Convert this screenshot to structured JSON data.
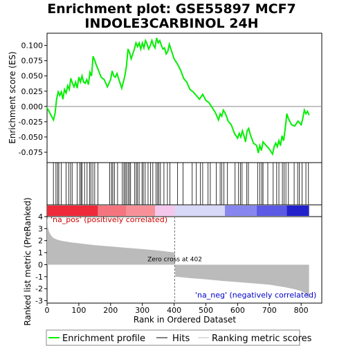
{
  "title_line1": "Enrichment plot: GSE55897 MCF7",
  "title_line2": "INDOLE3CARBINOL 24H",
  "colors": {
    "enrichment_line": "#00ee00",
    "hits": "#000000",
    "ranking_fill": "#bbbbbb",
    "positive_label": "#cc0000",
    "negative_label": "#0000cc",
    "zero_cross_line": "#777777"
  },
  "chart_data": [
    {
      "type": "line",
      "name": "enrichment-score",
      "ylabel": "Enrichment score (ES)",
      "ylim": [
        -0.092,
        0.12
      ],
      "xlim": [
        0,
        865
      ],
      "yticks": [
        "0.100",
        "0.075",
        "0.050",
        "0.025",
        "0.000",
        "-0.025",
        "-0.050",
        "-0.075"
      ],
      "ytick_values": [
        0.1,
        0.075,
        0.05,
        0.025,
        0.0,
        -0.025,
        -0.05,
        -0.075
      ],
      "grid": false,
      "series": [
        {
          "x": [
            0,
            10,
            20,
            25,
            30,
            35,
            40,
            45,
            50,
            55,
            60,
            65,
            70,
            75,
            80,
            85,
            90,
            95,
            100,
            105,
            110,
            115,
            120,
            125,
            130,
            135,
            140,
            145,
            150,
            155,
            160,
            170,
            180,
            190,
            200,
            205,
            210,
            215,
            220,
            225,
            230,
            235,
            240,
            245,
            250,
            255,
            260,
            265,
            270,
            275,
            280,
            285,
            290,
            295,
            300,
            305,
            310,
            315,
            320,
            325,
            330,
            335,
            340,
            345,
            350,
            355,
            360,
            365,
            370,
            375,
            380,
            385,
            390,
            395,
            400,
            410,
            420,
            430,
            440,
            450,
            460,
            470,
            480,
            490,
            500,
            510,
            520,
            530,
            540,
            545,
            550,
            555,
            560,
            565,
            570,
            580,
            590,
            600,
            605,
            610,
            615,
            620,
            625,
            630,
            635,
            640,
            650,
            660,
            665,
            670,
            675,
            680,
            690,
            700,
            710,
            715,
            720,
            725,
            730,
            735,
            740,
            745,
            750,
            755,
            760,
            770,
            780,
            790,
            800,
            805,
            810,
            815,
            820,
            825
          ],
          "y": [
            -0.002,
            -0.012,
            -0.022,
            -0.012,
            0.012,
            0.024,
            0.018,
            0.024,
            0.012,
            0.028,
            0.022,
            0.034,
            0.028,
            0.046,
            0.038,
            0.032,
            0.04,
            0.03,
            0.048,
            0.04,
            0.05,
            0.04,
            0.038,
            0.044,
            0.036,
            0.056,
            0.05,
            0.082,
            0.076,
            0.068,
            0.062,
            0.048,
            0.044,
            0.032,
            0.044,
            0.058,
            0.05,
            0.048,
            0.054,
            0.046,
            0.038,
            0.03,
            0.04,
            0.05,
            0.066,
            0.094,
            0.088,
            0.078,
            0.086,
            0.094,
            0.104,
            0.098,
            0.104,
            0.094,
            0.104,
            0.096,
            0.108,
            0.102,
            0.094,
            0.1,
            0.108,
            0.1,
            0.096,
            0.112,
            0.104,
            0.108,
            0.1,
            0.094,
            0.096,
            0.086,
            0.09,
            0.102,
            0.094,
            0.086,
            0.078,
            0.07,
            0.06,
            0.046,
            0.04,
            0.028,
            0.024,
            0.018,
            0.012,
            0.02,
            0.01,
            0.006,
            -0.002,
            -0.01,
            -0.022,
            -0.012,
            -0.016,
            -0.006,
            -0.01,
            -0.016,
            -0.024,
            -0.03,
            -0.044,
            -0.052,
            -0.044,
            -0.05,
            -0.04,
            -0.048,
            -0.058,
            -0.04,
            -0.036,
            -0.046,
            -0.06,
            -0.064,
            -0.076,
            -0.064,
            -0.072,
            -0.058,
            -0.064,
            -0.07,
            -0.078,
            -0.066,
            -0.06,
            -0.066,
            -0.056,
            -0.064,
            -0.048,
            -0.056,
            -0.036,
            -0.012,
            -0.02,
            -0.03,
            -0.032,
            -0.024,
            -0.03,
            -0.02,
            -0.006,
            -0.012,
            -0.008,
            -0.014
          ]
        }
      ]
    },
    {
      "type": "bar",
      "name": "hits",
      "xlim": [
        0,
        865
      ],
      "hit_positions": [
        20,
        28,
        33,
        37,
        45,
        60,
        68,
        74,
        79,
        95,
        103,
        107,
        110,
        118,
        126,
        134,
        138,
        144,
        150,
        160,
        197,
        203,
        207,
        212,
        222,
        237,
        242,
        246,
        250,
        255,
        259,
        263,
        276,
        281,
        285,
        290,
        299,
        303,
        309,
        318,
        326,
        333,
        343,
        348,
        352,
        357,
        368,
        379,
        387,
        411,
        428,
        457,
        470,
        483,
        490,
        507,
        514,
        533,
        545,
        550,
        557,
        568,
        592,
        603,
        609,
        614,
        629,
        634,
        663,
        670,
        676,
        680,
        695,
        712,
        723,
        730,
        741,
        746,
        752,
        760,
        778,
        789,
        794,
        803,
        815,
        823
      ]
    },
    {
      "type": "heatmap",
      "name": "ranked-list-colorbar",
      "xlim": [
        0,
        865
      ],
      "segments": [
        {
          "from": 0,
          "to": 160,
          "color": "#ee2a3a"
        },
        {
          "from": 160,
          "to": 250,
          "color": "#f5757f"
        },
        {
          "from": 250,
          "to": 340,
          "color": "#f89098"
        },
        {
          "from": 340,
          "to": 402,
          "color": "#f4c8ec"
        },
        {
          "from": 402,
          "to": 560,
          "color": "#d8d8f8"
        },
        {
          "from": 560,
          "to": 660,
          "color": "#8686ee"
        },
        {
          "from": 660,
          "to": 755,
          "color": "#5a5ae4"
        },
        {
          "from": 755,
          "to": 825,
          "color": "#2222cc"
        }
      ]
    },
    {
      "type": "area",
      "name": "ranked-list-metric",
      "xlabel": "Rank in Ordered Dataset",
      "ylabel": "Ranked list metric (PreRanked)",
      "ylim": [
        -3.2,
        4.0
      ],
      "xlim": [
        0,
        865
      ],
      "yticks": [
        "4",
        "3",
        "2",
        "1",
        "0",
        "-1",
        "-2",
        "-3"
      ],
      "ytick_values": [
        4,
        3,
        2,
        1,
        0,
        -1,
        -2,
        -3
      ],
      "xticks": [
        "0",
        "100",
        "200",
        "300",
        "400",
        "500",
        "600",
        "700",
        "800"
      ],
      "xtick_values": [
        0,
        100,
        200,
        300,
        400,
        500,
        600,
        700,
        800
      ],
      "x": [
        0,
        3,
        6,
        10,
        15,
        20,
        30,
        40,
        50,
        75,
        100,
        150,
        200,
        250,
        300,
        350,
        400,
        402,
        404,
        450,
        500,
        550,
        600,
        650,
        700,
        750,
        780,
        800,
        810,
        815,
        820,
        825
      ],
      "values": [
        4.0,
        3.05,
        2.75,
        2.55,
        2.35,
        2.22,
        2.1,
        2.02,
        1.96,
        1.86,
        1.78,
        1.62,
        1.52,
        1.4,
        1.3,
        1.18,
        1.02,
        0.99,
        -1.0,
        -1.12,
        -1.22,
        -1.35,
        -1.45,
        -1.56,
        -1.67,
        -1.88,
        -2.05,
        -2.2,
        -2.35,
        -2.5,
        -2.65,
        -2.82
      ],
      "positive_label": "'na_pos' (positively correlated)",
      "negative_label": "'na_neg' (negatively correlated)",
      "zero_cross_label": "Zero cross at 402",
      "zero_cross": 402
    }
  ],
  "legend": {
    "placement": "bottom",
    "items": [
      {
        "label": "Enrichment profile",
        "color": "#00ee00"
      },
      {
        "label": "Hits",
        "color": "#000000"
      },
      {
        "label": "Ranking metric scores",
        "color": "#bbbbbb"
      }
    ]
  }
}
